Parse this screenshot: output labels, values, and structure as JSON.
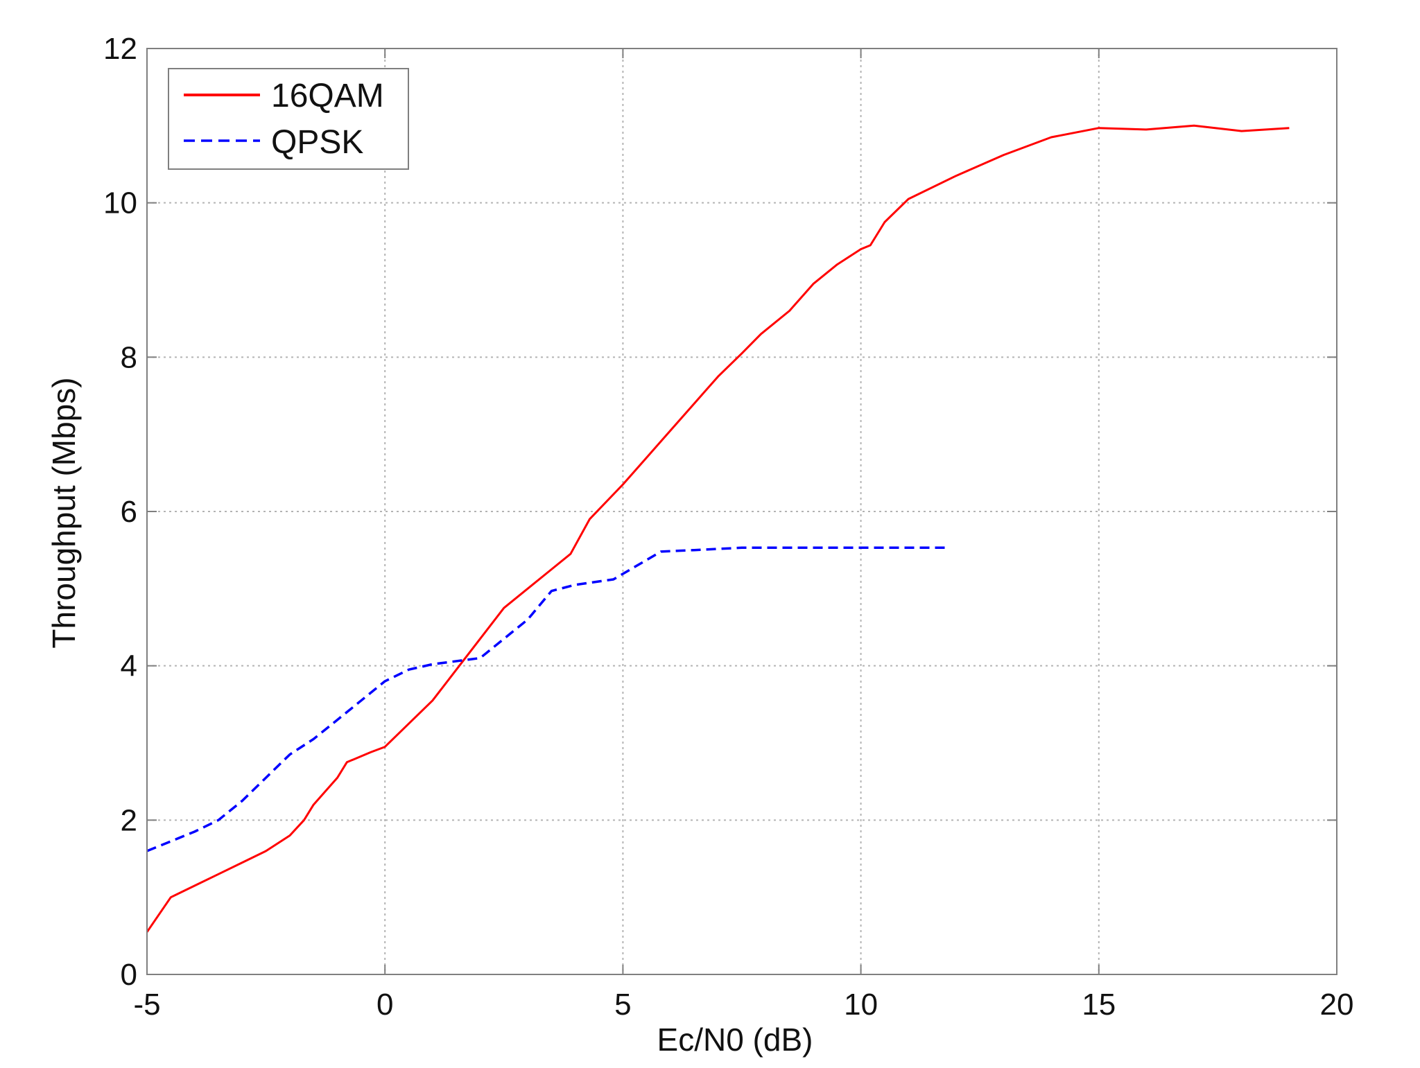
{
  "colors": {
    "background": "#ffffff",
    "axes": "#7f7f7f",
    "grid": "#b3b3b3",
    "qam16": "#ff0000",
    "qpsk": "#0000ff"
  },
  "chart_data": {
    "type": "line",
    "title": "",
    "xlabel": "Ec/N0 (dB)",
    "ylabel": "Throughput (Mbps)",
    "xlim": [
      -5,
      20
    ],
    "ylim": [
      0,
      12
    ],
    "xticks": [
      -5,
      0,
      5,
      10,
      15,
      20
    ],
    "yticks": [
      0,
      2,
      4,
      6,
      8,
      10,
      12
    ],
    "grid": true,
    "legend_position": "top-left",
    "series": [
      {
        "name": "16QAM",
        "color": "#ff0000",
        "line_style": "solid",
        "points": [
          [
            -5,
            0.55
          ],
          [
            -4.5,
            1.0
          ],
          [
            -4,
            1.15
          ],
          [
            -3.5,
            1.3
          ],
          [
            -3,
            1.45
          ],
          [
            -2.5,
            1.6
          ],
          [
            -2,
            1.8
          ],
          [
            -1.7,
            2.0
          ],
          [
            -1.5,
            2.2
          ],
          [
            -1,
            2.55
          ],
          [
            -0.8,
            2.75
          ],
          [
            -0.3,
            2.88
          ],
          [
            0,
            2.95
          ],
          [
            0.5,
            3.25
          ],
          [
            1,
            3.55
          ],
          [
            1.5,
            3.95
          ],
          [
            2,
            4.35
          ],
          [
            2.5,
            4.75
          ],
          [
            3,
            5.0
          ],
          [
            3.5,
            5.25
          ],
          [
            3.9,
            5.45
          ],
          [
            4.3,
            5.9
          ],
          [
            5,
            6.35
          ],
          [
            5.5,
            6.7
          ],
          [
            6,
            7.05
          ],
          [
            6.5,
            7.4
          ],
          [
            7,
            7.75
          ],
          [
            7.5,
            8.05
          ],
          [
            7.9,
            8.3
          ],
          [
            8.5,
            8.6
          ],
          [
            9,
            8.95
          ],
          [
            9.5,
            9.2
          ],
          [
            10,
            9.4
          ],
          [
            10.2,
            9.45
          ],
          [
            10.5,
            9.75
          ],
          [
            11,
            10.05
          ],
          [
            12,
            10.35
          ],
          [
            13,
            10.62
          ],
          [
            14,
            10.85
          ],
          [
            15,
            10.97
          ],
          [
            16,
            10.95
          ],
          [
            17,
            11.0
          ],
          [
            18,
            10.93
          ],
          [
            19,
            10.97
          ]
        ]
      },
      {
        "name": "QPSK",
        "color": "#0000ff",
        "line_style": "dashed",
        "points": [
          [
            -5,
            1.6
          ],
          [
            -4,
            1.85
          ],
          [
            -3.5,
            2.0
          ],
          [
            -3,
            2.25
          ],
          [
            -2.5,
            2.55
          ],
          [
            -2,
            2.85
          ],
          [
            -1.5,
            3.05
          ],
          [
            -1,
            3.3
          ],
          [
            -0.5,
            3.55
          ],
          [
            0,
            3.8
          ],
          [
            0.5,
            3.95
          ],
          [
            1,
            4.02
          ],
          [
            2,
            4.1
          ],
          [
            3,
            4.6
          ],
          [
            3.5,
            4.97
          ],
          [
            4,
            5.05
          ],
          [
            4.8,
            5.12
          ],
          [
            5.3,
            5.3
          ],
          [
            5.8,
            5.48
          ],
          [
            6.5,
            5.5
          ],
          [
            7.5,
            5.53
          ],
          [
            8.5,
            5.53
          ],
          [
            10,
            5.53
          ],
          [
            11.8,
            5.53
          ]
        ]
      }
    ]
  }
}
